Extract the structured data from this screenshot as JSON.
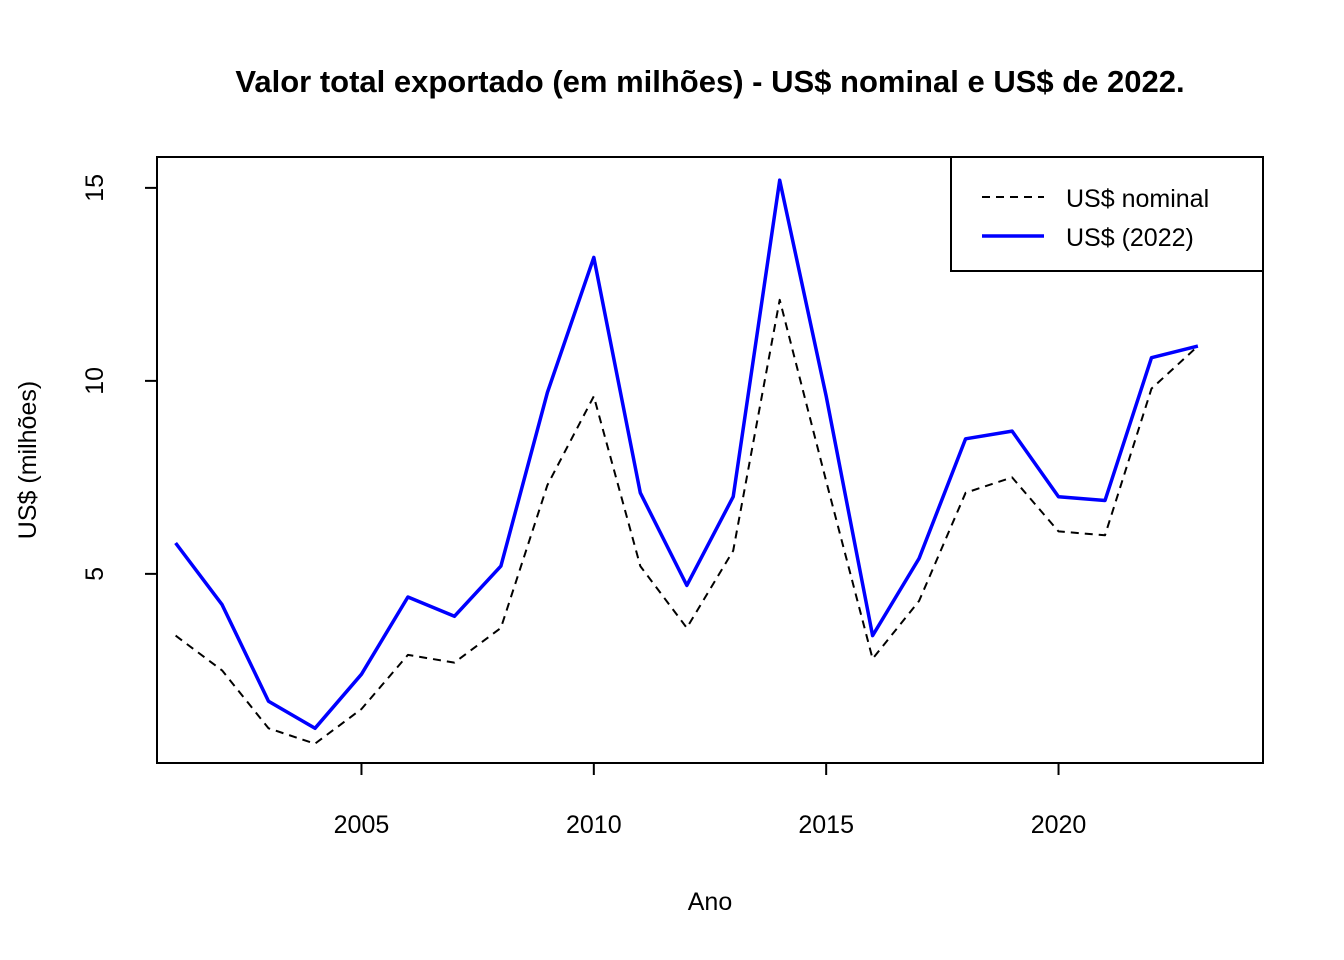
{
  "chart_data": {
    "type": "line",
    "title": "Valor total exportado (em milhões) - US$ nominal e US$ de 2022.",
    "xlabel": "Ano",
    "ylabel": "US$ (milhões)",
    "x": [
      2001,
      2002,
      2003,
      2004,
      2005,
      2006,
      2007,
      2008,
      2009,
      2010,
      2011,
      2012,
      2013,
      2014,
      2015,
      2016,
      2017,
      2018,
      2019,
      2020,
      2021,
      2022,
      2023
    ],
    "xlim": [
      2000.6,
      2024.4
    ],
    "ylim": [
      0.1,
      15.8
    ],
    "x_ticks": [
      2005,
      2010,
      2015,
      2020
    ],
    "y_ticks": [
      5,
      10,
      15
    ],
    "grid": false,
    "legend_position": "top-right",
    "series": [
      {
        "name": "US$ nominal",
        "line_style": "dashed",
        "color": "#000000",
        "values": [
          3.4,
          2.5,
          1.0,
          0.6,
          1.5,
          2.9,
          2.7,
          3.6,
          7.3,
          9.6,
          5.2,
          3.6,
          5.6,
          12.1,
          7.4,
          2.8,
          4.3,
          7.1,
          7.5,
          6.1,
          6.0,
          9.8,
          10.9
        ]
      },
      {
        "name": "US$ (2022)",
        "line_style": "solid",
        "color": "#0000ff",
        "values": [
          5.8,
          4.2,
          1.7,
          1.0,
          2.4,
          4.4,
          3.9,
          5.2,
          9.7,
          13.2,
          7.1,
          4.7,
          7.0,
          15.2,
          9.6,
          3.4,
          5.4,
          8.5,
          8.7,
          7.0,
          6.9,
          10.6,
          10.9
        ]
      }
    ]
  }
}
